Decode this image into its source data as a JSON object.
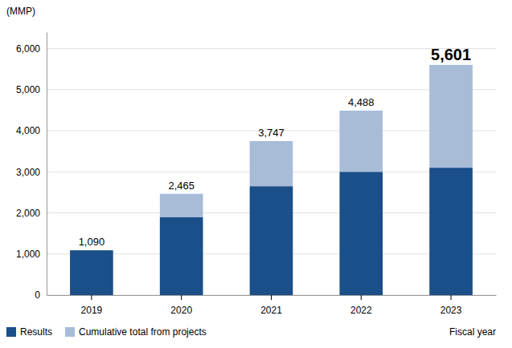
{
  "chart_data": {
    "type": "bar",
    "stacked": true,
    "categories": [
      "2019",
      "2020",
      "2021",
      "2022",
      "2023"
    ],
    "series": [
      {
        "name": "Results",
        "color": "#1a4f8a",
        "values": [
          1090,
          1900,
          2650,
          3000,
          3100
        ]
      },
      {
        "name": "Cumulative total from projects",
        "color": "#a8bcd8",
        "values": [
          0,
          565,
          1097,
          1488,
          2501
        ]
      }
    ],
    "totals": [
      1090,
      2465,
      3747,
      4488,
      5601
    ],
    "total_labels": [
      "1,090",
      "2,465",
      "3,747",
      "4,488",
      "5,601"
    ],
    "ylabel": "(MMP)",
    "xlabel": "Fiscal year",
    "ylim": [
      0,
      6400
    ],
    "yticks": [
      0,
      {
        "value": 1000,
        "label": "1,000"
      },
      {
        "value": 2000,
        "label": "2,000"
      },
      {
        "value": 3000,
        "label": "3,000"
      },
      {
        "value": 4000,
        "label": "4,000"
      },
      {
        "value": 5000,
        "label": "5,000"
      },
      {
        "value": 6000,
        "label": "6,000"
      }
    ],
    "grid": true,
    "legend": "bottom"
  }
}
